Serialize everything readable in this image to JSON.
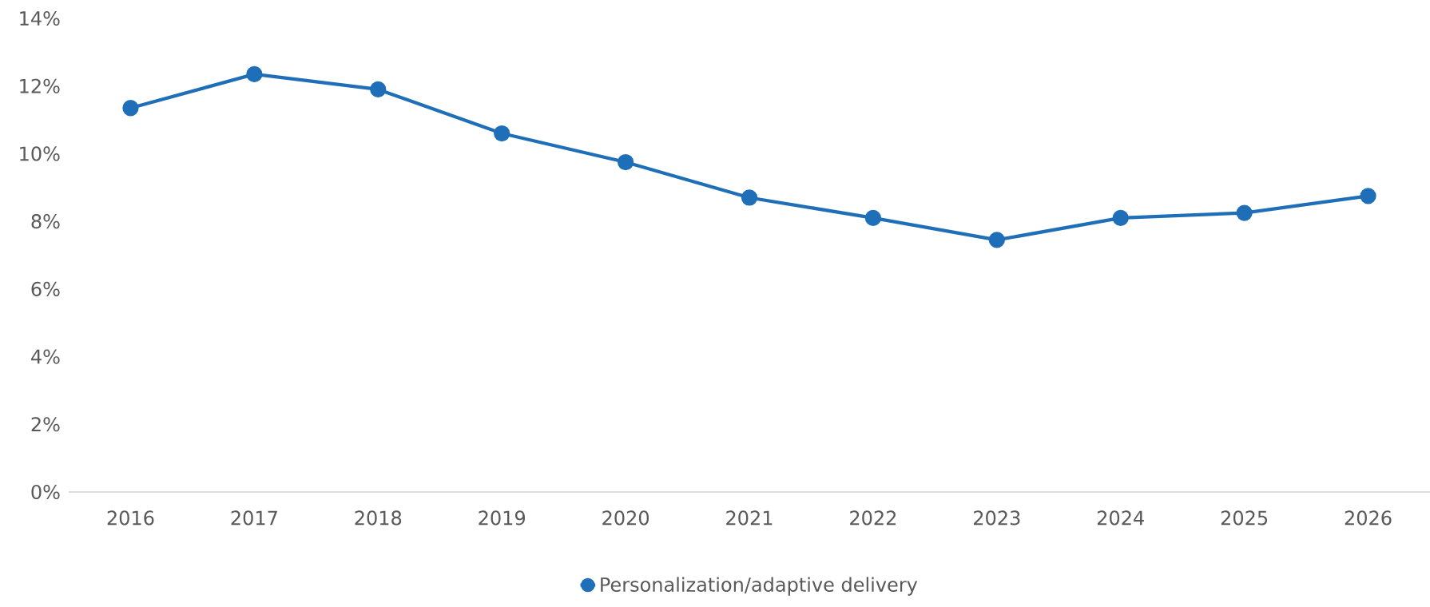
{
  "chart_data": {
    "type": "line",
    "categories": [
      "2016",
      "2017",
      "2018",
      "2019",
      "2020",
      "2021",
      "2022",
      "2023",
      "2024",
      "2025",
      "2026"
    ],
    "series": [
      {
        "name": "Personalization/adaptive delivery",
        "color": "#1f6fb8",
        "values": [
          11.35,
          12.35,
          11.9,
          10.6,
          9.75,
          8.7,
          8.1,
          7.45,
          8.1,
          8.25,
          8.75
        ]
      }
    ],
    "ylim": [
      0,
      14
    ],
    "yticks": [
      {
        "value": 0,
        "label": "0%"
      },
      {
        "value": 2,
        "label": "2%"
      },
      {
        "value": 4,
        "label": "4%"
      },
      {
        "value": 6,
        "label": "6%"
      },
      {
        "value": 8,
        "label": "8%"
      },
      {
        "value": 10,
        "label": "10%"
      },
      {
        "value": 12,
        "label": "12%"
      },
      {
        "value": 14,
        "label": "14%"
      }
    ],
    "legend": "bottom",
    "marker": "circle",
    "line_style": "solid"
  }
}
